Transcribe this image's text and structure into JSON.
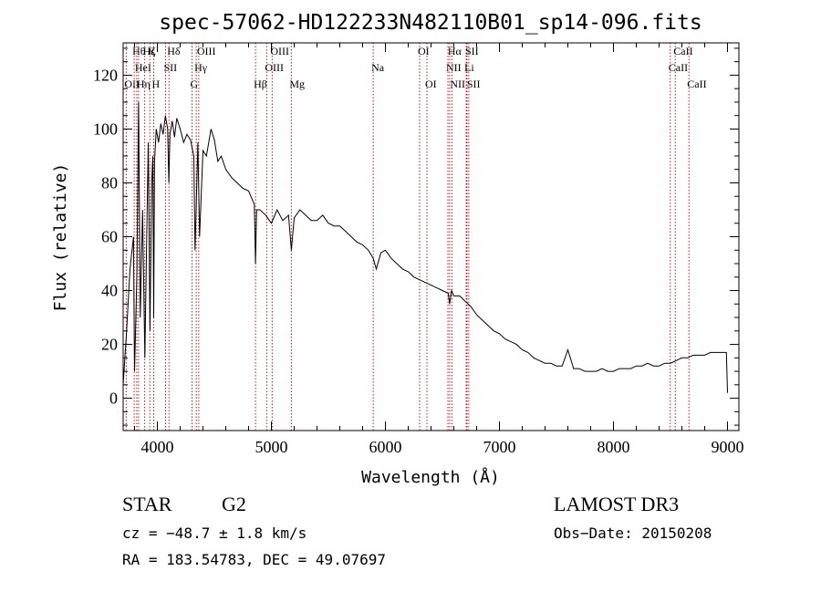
{
  "chart_data": {
    "type": "line",
    "title": "spec-57062-HD122233N482110B01_sp14-096.fits",
    "xlabel": "Wavelength (Å)",
    "ylabel": "Flux (relative)",
    "xlim": [
      3700,
      9100
    ],
    "ylim": [
      -12,
      132
    ],
    "x_ticks": [
      4000,
      5000,
      6000,
      7000,
      8000,
      9000
    ],
    "x_tick_labels": [
      "4000",
      "5000",
      "6000",
      "7000",
      "8000",
      "9000"
    ],
    "y_ticks": [
      0,
      20,
      40,
      60,
      80,
      100,
      120
    ],
    "y_tick_labels": [
      "0",
      "20",
      "40",
      "60",
      "80",
      "100",
      "120"
    ],
    "series": [
      {
        "name": "flux",
        "x": [
          3700,
          3730,
          3760,
          3790,
          3800,
          3820,
          3835,
          3850,
          3870,
          3890,
          3905,
          3920,
          3935,
          3950,
          3960,
          3968,
          3975,
          3990,
          4010,
          4030,
          4050,
          4070,
          4090,
          4101,
          4110,
          4130,
          4150,
          4170,
          4200,
          4230,
          4260,
          4290,
          4320,
          4330,
          4340,
          4355,
          4370,
          4400,
          4430,
          4470,
          4500,
          4530,
          4560,
          4600,
          4650,
          4700,
          4750,
          4800,
          4850,
          4861,
          4870,
          4900,
          4950,
          5000,
          5050,
          5100,
          5150,
          5175,
          5200,
          5250,
          5300,
          5350,
          5400,
          5450,
          5500,
          5550,
          5600,
          5650,
          5700,
          5750,
          5800,
          5850,
          5893,
          5920,
          5960,
          6000,
          6050,
          6100,
          6150,
          6200,
          6250,
          6300,
          6350,
          6400,
          6450,
          6500,
          6550,
          6563,
          6580,
          6600,
          6650,
          6700,
          6750,
          6800,
          6850,
          6900,
          6950,
          7000,
          7050,
          7100,
          7150,
          7200,
          7250,
          7300,
          7350,
          7400,
          7450,
          7500,
          7550,
          7600,
          7650,
          7700,
          7750,
          7800,
          7850,
          7900,
          7950,
          8000,
          8050,
          8100,
          8150,
          8200,
          8250,
          8300,
          8350,
          8400,
          8450,
          8500,
          8550,
          8600,
          8650,
          8700,
          8750,
          8800,
          8850,
          8900,
          8950,
          8990,
          9000
        ],
        "y": [
          5,
          25,
          48,
          60,
          10,
          45,
          110,
          30,
          70,
          15,
          55,
          95,
          25,
          80,
          90,
          30,
          88,
          100,
          95,
          102,
          98,
          105,
          100,
          80,
          98,
          103,
          97,
          104,
          100,
          95,
          98,
          96,
          90,
          55,
          70,
          95,
          60,
          92,
          90,
          100,
          96,
          88,
          90,
          85,
          82,
          80,
          78,
          77,
          72,
          50,
          70,
          70,
          68,
          65,
          70,
          66,
          68,
          55,
          67,
          70,
          68,
          66,
          66,
          68,
          65,
          64,
          64,
          62,
          60,
          58,
          57,
          55,
          52,
          48,
          54,
          55,
          52,
          50,
          48,
          47,
          45,
          44,
          43,
          42,
          41,
          40,
          39,
          35,
          40,
          38,
          38,
          36,
          34,
          31,
          29,
          27,
          25,
          24,
          22,
          21,
          20,
          18,
          17,
          15,
          14,
          13,
          13,
          12,
          12,
          18,
          11,
          11,
          10,
          10,
          10,
          11,
          10,
          10,
          11,
          11,
          11,
          12,
          12,
          13,
          12,
          12,
          13,
          13,
          14,
          15,
          15,
          16,
          16,
          16,
          17,
          17,
          17,
          17,
          2
        ]
      }
    ],
    "line_markers": [
      {
        "wl": 3727,
        "label": "OII",
        "row": 2
      },
      {
        "wl": 3797,
        "label": "Hθ",
        "row": 0
      },
      {
        "wl": 3819,
        "label": "HeI",
        "row": 1
      },
      {
        "wl": 3835,
        "label": "Hη",
        "row": 2
      },
      {
        "wl": 3889,
        "label": "Hζ",
        "row": 0
      },
      {
        "wl": 3934,
        "label": "K",
        "row": 0
      },
      {
        "wl": 3968,
        "label": "H",
        "row": 2
      },
      {
        "wl": 4072,
        "label": "SII",
        "row": 1
      },
      {
        "wl": 4102,
        "label": "Hδ",
        "row": 0
      },
      {
        "wl": 4304,
        "label": "G",
        "row": 2
      },
      {
        "wl": 4341,
        "label": "Hγ",
        "row": 1
      },
      {
        "wl": 4363,
        "label": "OIII",
        "row": 0
      },
      {
        "wl": 4861,
        "label": "Hβ",
        "row": 2
      },
      {
        "wl": 4959,
        "label": "OIII",
        "row": 1
      },
      {
        "wl": 5007,
        "label": "OIII",
        "row": 0
      },
      {
        "wl": 5175,
        "label": "Mg",
        "row": 2
      },
      {
        "wl": 5893,
        "label": "Na",
        "row": 1
      },
      {
        "wl": 6300,
        "label": "OI",
        "row": 0
      },
      {
        "wl": 6364,
        "label": "OI",
        "row": 2
      },
      {
        "wl": 6548,
        "label": "NII",
        "row": 1
      },
      {
        "wl": 6563,
        "label": "Hα",
        "row": 0
      },
      {
        "wl": 6583,
        "label": "NII",
        "row": 2
      },
      {
        "wl": 6708,
        "label": "Li",
        "row": 1
      },
      {
        "wl": 6716,
        "label": "SII",
        "row": 0
      },
      {
        "wl": 6731,
        "label": "SII",
        "row": 2
      },
      {
        "wl": 8498,
        "label": "CaII",
        "row": 1
      },
      {
        "wl": 8542,
        "label": "CaII",
        "row": 0
      },
      {
        "wl": 8662,
        "label": "CaII",
        "row": 2
      }
    ],
    "line_color": "#000000",
    "marker_color": "#b22222"
  },
  "info": {
    "class_label": "STAR",
    "subclass": "G2",
    "survey": "LAMOST DR3",
    "redshift": "cz = −48.7 ± 1.8 km/s",
    "obs_date": "Obs−Date: 20150208",
    "coords": "RA = 183.54783, DEC =  49.07697"
  }
}
